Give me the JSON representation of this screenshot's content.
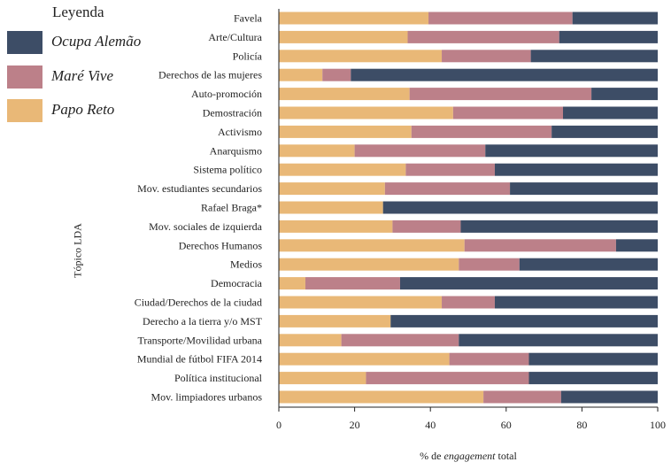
{
  "legend": {
    "title": "Leyenda",
    "position": "top-left",
    "items": [
      {
        "label": "Ocupa Alemão",
        "color": "#3d4d66"
      },
      {
        "label": "Maré Vive",
        "color": "#bc8089"
      },
      {
        "label": "Papo Reto",
        "color": "#e9b877"
      }
    ]
  },
  "axes": {
    "ylabel": "Tópico LDA",
    "xlabel_prefix": "% de ",
    "xlabel_italic": "engagement",
    "xlabel_suffix": " total"
  },
  "chart_data": {
    "type": "bar",
    "orientation": "horizontal",
    "stacked": true,
    "xlim": [
      0,
      100
    ],
    "xticks": [
      0,
      20,
      40,
      60,
      80,
      100
    ],
    "ylabel": "Tópico LDA",
    "xlabel": "% de engagement total",
    "grid": false,
    "legend_position": "top-left",
    "categories": [
      "Favela",
      "Arte/Cultura",
      "Policía",
      "Derechos de las mujeres",
      "Auto-promoción",
      "Demostración",
      "Activismo",
      "Anarquismo",
      "Sistema político",
      "Mov. estudiantes secundarios",
      "Rafael Braga*",
      "Mov. sociales de izquierda",
      "Derechos Humanos",
      "Medios",
      "Democracia",
      "Ciudad/Derechos de la ciudad",
      "Derecho a la tierra y/o MST",
      "Transporte/Movilidad urbana",
      "Mundial de fútbol FIFA 2014",
      "Política institucional",
      "Mov. limpiadores urbanos"
    ],
    "series": [
      {
        "name": "Papo Reto",
        "color": "#e9b877",
        "values": [
          39.5,
          34,
          43,
          11.5,
          34.5,
          46,
          35,
          20,
          33.5,
          28,
          27.5,
          30,
          49,
          47.5,
          7,
          43,
          29.5,
          16.5,
          45,
          23,
          54
        ]
      },
      {
        "name": "Maré Vive",
        "color": "#bc8089",
        "values": [
          38,
          40,
          23.5,
          7.5,
          48,
          29,
          37,
          34.5,
          23.5,
          33,
          0,
          18,
          40,
          16,
          25,
          14,
          0,
          31,
          21,
          43,
          20.5
        ]
      },
      {
        "name": "Ocupa Alemão",
        "color": "#3d4d66",
        "values": [
          22.5,
          26,
          33.5,
          81,
          17.5,
          25,
          28,
          45.5,
          43,
          39,
          72.5,
          52,
          11,
          36.5,
          68,
          43,
          70.5,
          52.5,
          34,
          34,
          25.5
        ]
      }
    ]
  }
}
